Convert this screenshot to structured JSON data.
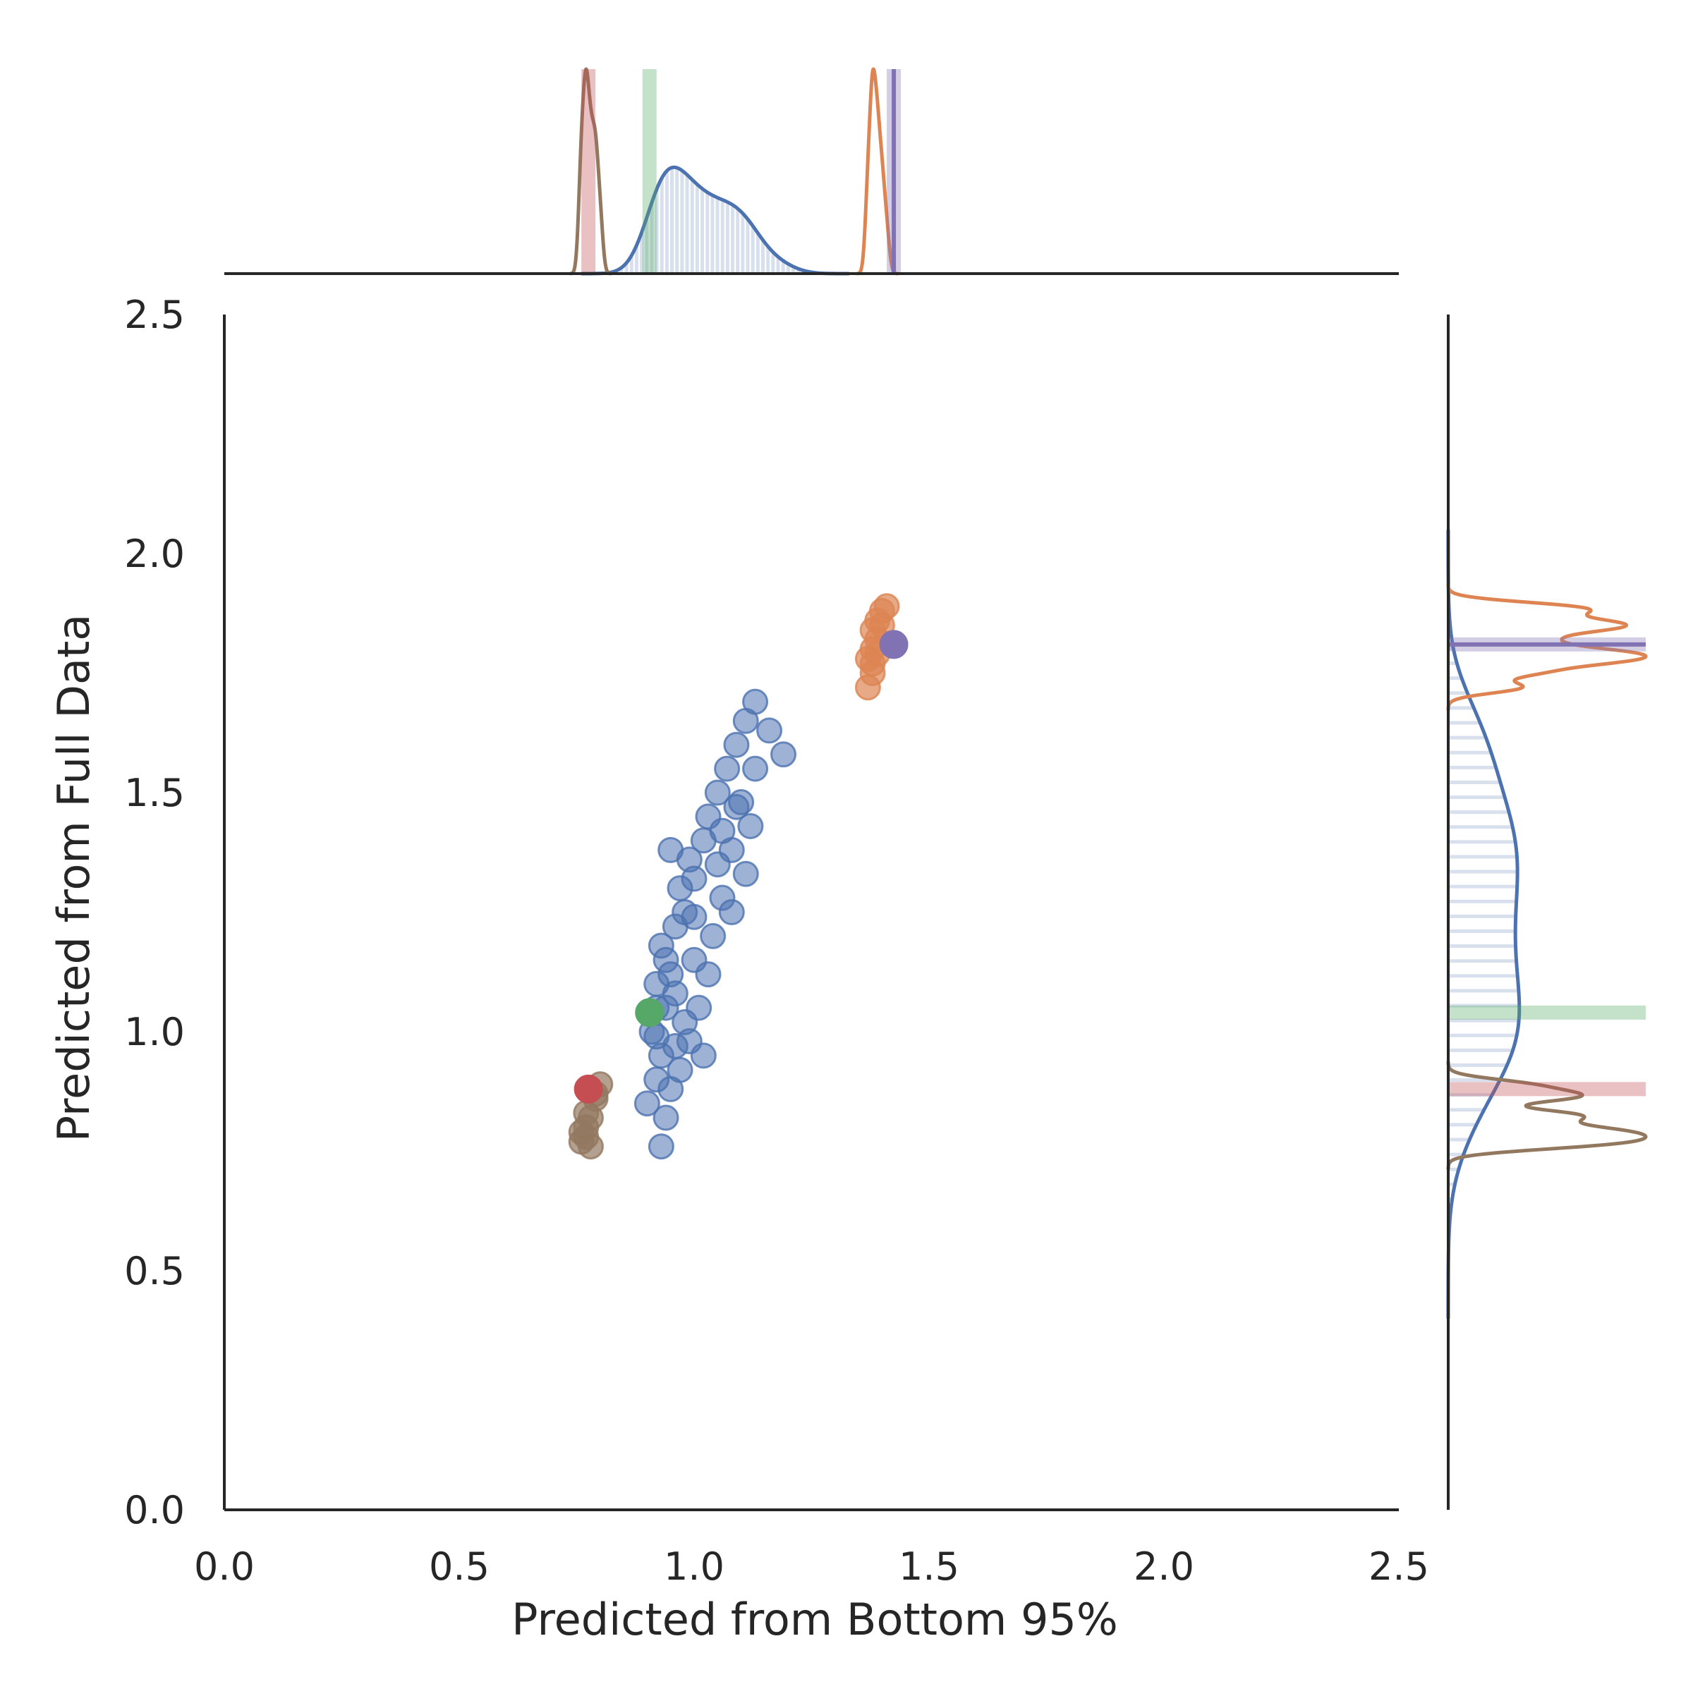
{
  "chart_data": {
    "type": "scatter",
    "xlabel": "Predicted from Bottom 95%",
    "ylabel": "Predicted from Full Data",
    "xlim": [
      0,
      2.5
    ],
    "ylim": [
      0,
      2.5
    ],
    "x_ticks": [
      "0.0",
      "0.5",
      "1.0",
      "1.5",
      "2.0",
      "2.5"
    ],
    "y_ticks": [
      "0.0",
      "0.5",
      "1.0",
      "1.5",
      "2.0",
      "2.5"
    ],
    "grid": false,
    "marginals": [
      "top histogram + kde",
      "right histogram + kde"
    ],
    "colors": {
      "blue": "#4c72b0",
      "orange": "#dd8452",
      "green": "#55a868",
      "red": "#c44e52",
      "purple": "#8172b3",
      "brown": "#937860",
      "axis": "#262626"
    },
    "series": [
      {
        "color": "blue",
        "points": [
          [
            0.9,
            0.85
          ],
          [
            0.92,
            0.9
          ],
          [
            0.93,
            0.95
          ],
          [
            0.91,
            1.0
          ],
          [
            0.94,
            1.05
          ],
          [
            0.92,
            1.1
          ],
          [
            0.95,
            1.12
          ],
          [
            0.93,
            1.18
          ],
          [
            0.96,
            1.22
          ],
          [
            0.98,
            1.25
          ],
          [
            0.97,
            1.3
          ],
          [
            1.0,
            1.32
          ],
          [
            0.99,
            1.36
          ],
          [
            1.02,
            1.4
          ],
          [
            1.03,
            1.45
          ],
          [
            1.05,
            1.5
          ],
          [
            1.07,
            1.55
          ],
          [
            1.09,
            1.6
          ],
          [
            1.11,
            1.65
          ],
          [
            1.13,
            1.69
          ],
          [
            1.16,
            1.63
          ],
          [
            1.19,
            1.58
          ],
          [
            1.1,
            1.48
          ],
          [
            1.12,
            1.43
          ],
          [
            1.08,
            1.38
          ],
          [
            1.11,
            1.33
          ],
          [
            1.06,
            1.28
          ],
          [
            1.04,
            1.2
          ],
          [
            1.03,
            1.12
          ],
          [
            1.01,
            1.05
          ],
          [
            0.99,
            0.98
          ],
          [
            0.97,
            0.92
          ],
          [
            0.95,
            0.88
          ],
          [
            0.94,
            0.82
          ],
          [
            0.93,
            0.76
          ],
          [
            0.92,
            0.99
          ],
          [
            0.96,
            1.08
          ],
          [
            1.0,
            1.15
          ],
          [
            0.98,
            1.02
          ],
          [
            1.05,
            1.35
          ],
          [
            0.95,
            1.38
          ],
          [
            1.08,
            1.25
          ],
          [
            1.02,
            0.95
          ],
          [
            0.96,
            0.97
          ],
          [
            1.06,
            1.42
          ],
          [
            1.09,
            1.47
          ],
          [
            1.0,
            1.24
          ],
          [
            0.94,
            1.15
          ],
          [
            1.13,
            1.55
          ],
          [
            0.92,
            1.05
          ]
        ]
      },
      {
        "color": "orange",
        "points": [
          [
            1.37,
            1.72
          ],
          [
            1.38,
            1.75
          ],
          [
            1.37,
            1.78
          ],
          [
            1.38,
            1.8
          ],
          [
            1.39,
            1.82
          ],
          [
            1.38,
            1.84
          ],
          [
            1.39,
            1.86
          ],
          [
            1.4,
            1.88
          ],
          [
            1.41,
            1.89
          ],
          [
            1.38,
            1.77
          ],
          [
            1.4,
            1.85
          ],
          [
            1.39,
            1.79
          ]
        ]
      },
      {
        "color": "brown",
        "points": [
          [
            0.76,
            0.77
          ],
          [
            0.77,
            0.78
          ],
          [
            0.77,
            0.8
          ],
          [
            0.78,
            0.82
          ],
          [
            0.76,
            0.79
          ],
          [
            0.78,
            0.76
          ],
          [
            0.77,
            0.83
          ],
          [
            0.79,
            0.86
          ],
          [
            0.8,
            0.89
          ],
          [
            0.79,
            0.87
          ]
        ]
      },
      {
        "color": "green",
        "points": [
          [
            0.905,
            1.04
          ]
        ]
      },
      {
        "color": "red",
        "points": [
          [
            0.775,
            0.88
          ]
        ]
      },
      {
        "color": "purple",
        "points": [
          [
            1.425,
            1.81
          ]
        ]
      }
    ]
  }
}
